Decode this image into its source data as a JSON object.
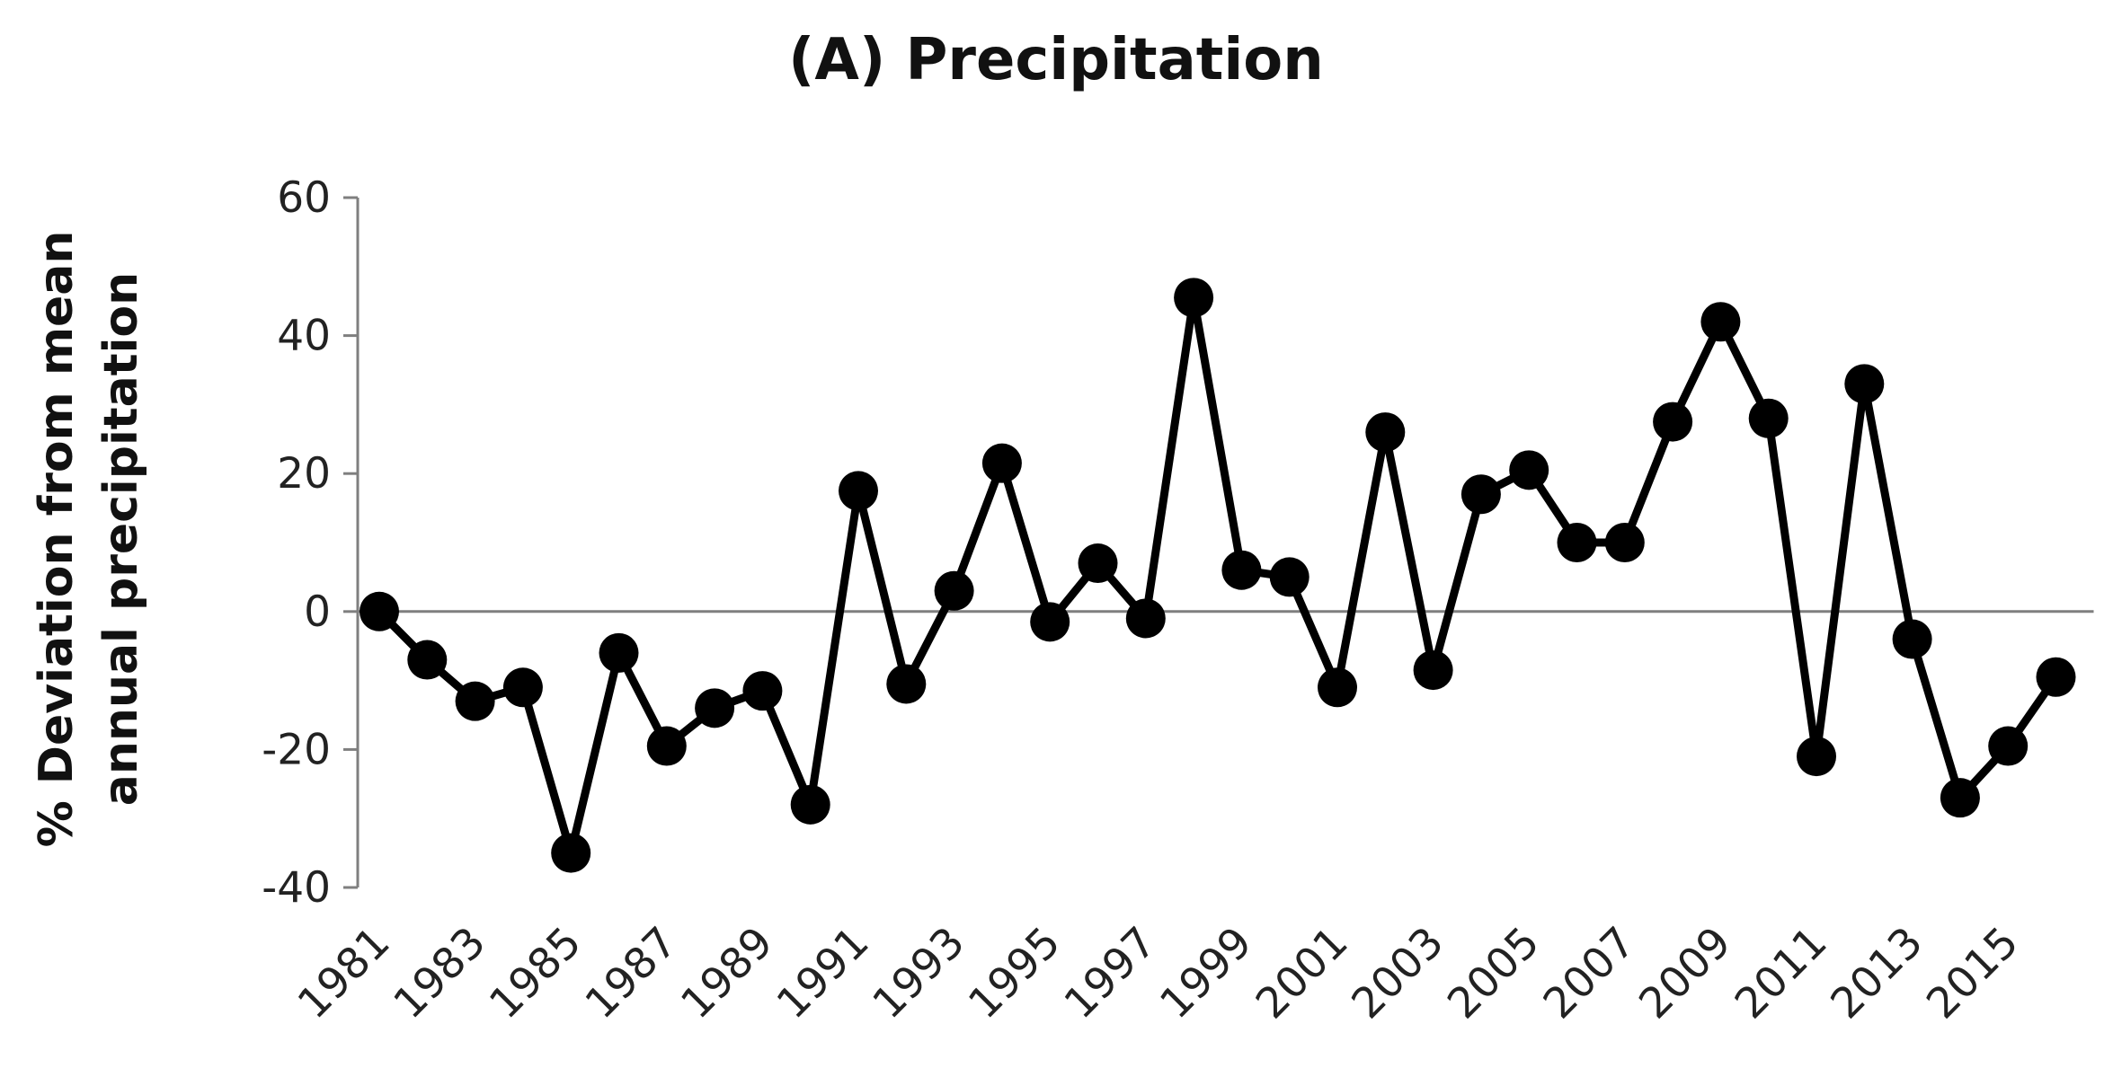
{
  "chart_data": {
    "type": "line",
    "title": "(A) Precipitation",
    "ylabel_lines": [
      "% Deviation from mean",
      "annual precipitation"
    ],
    "xlabel": "",
    "ylim": [
      -40,
      60
    ],
    "yticks": [
      60,
      40,
      20,
      0,
      -20,
      -40
    ],
    "xtick_labels": [
      "1981",
      "1983",
      "1985",
      "1987",
      "1989",
      "1991",
      "1993",
      "1995",
      "1997",
      "1999",
      "2001",
      "2003",
      "2005",
      "2007",
      "2009",
      "2011",
      "2013",
      "2015"
    ],
    "grid": false,
    "legend": "none",
    "marker": "circle",
    "line_color": "#000000",
    "axis_color": "#7f7f7f",
    "x": [
      1981,
      1982,
      1983,
      1984,
      1985,
      1986,
      1987,
      1988,
      1989,
      1990,
      1991,
      1992,
      1993,
      1994,
      1995,
      1996,
      1997,
      1998,
      1999,
      2000,
      2001,
      2002,
      2003,
      2004,
      2005,
      2006,
      2007,
      2008,
      2009,
      2010,
      2011,
      2012,
      2013,
      2014,
      2015,
      2016
    ],
    "values": [
      0,
      -7,
      -13,
      -11,
      -35,
      -6,
      -19.5,
      -14,
      -11.5,
      -28,
      17.5,
      -10.5,
      3,
      21.5,
      -1.5,
      7,
      -1,
      45.5,
      6,
      5,
      -11,
      26,
      -8.5,
      17,
      20.5,
      10,
      10,
      27.5,
      42,
      28,
      -21,
      33,
      -4,
      -27,
      -19.5,
      -9.5
    ]
  }
}
